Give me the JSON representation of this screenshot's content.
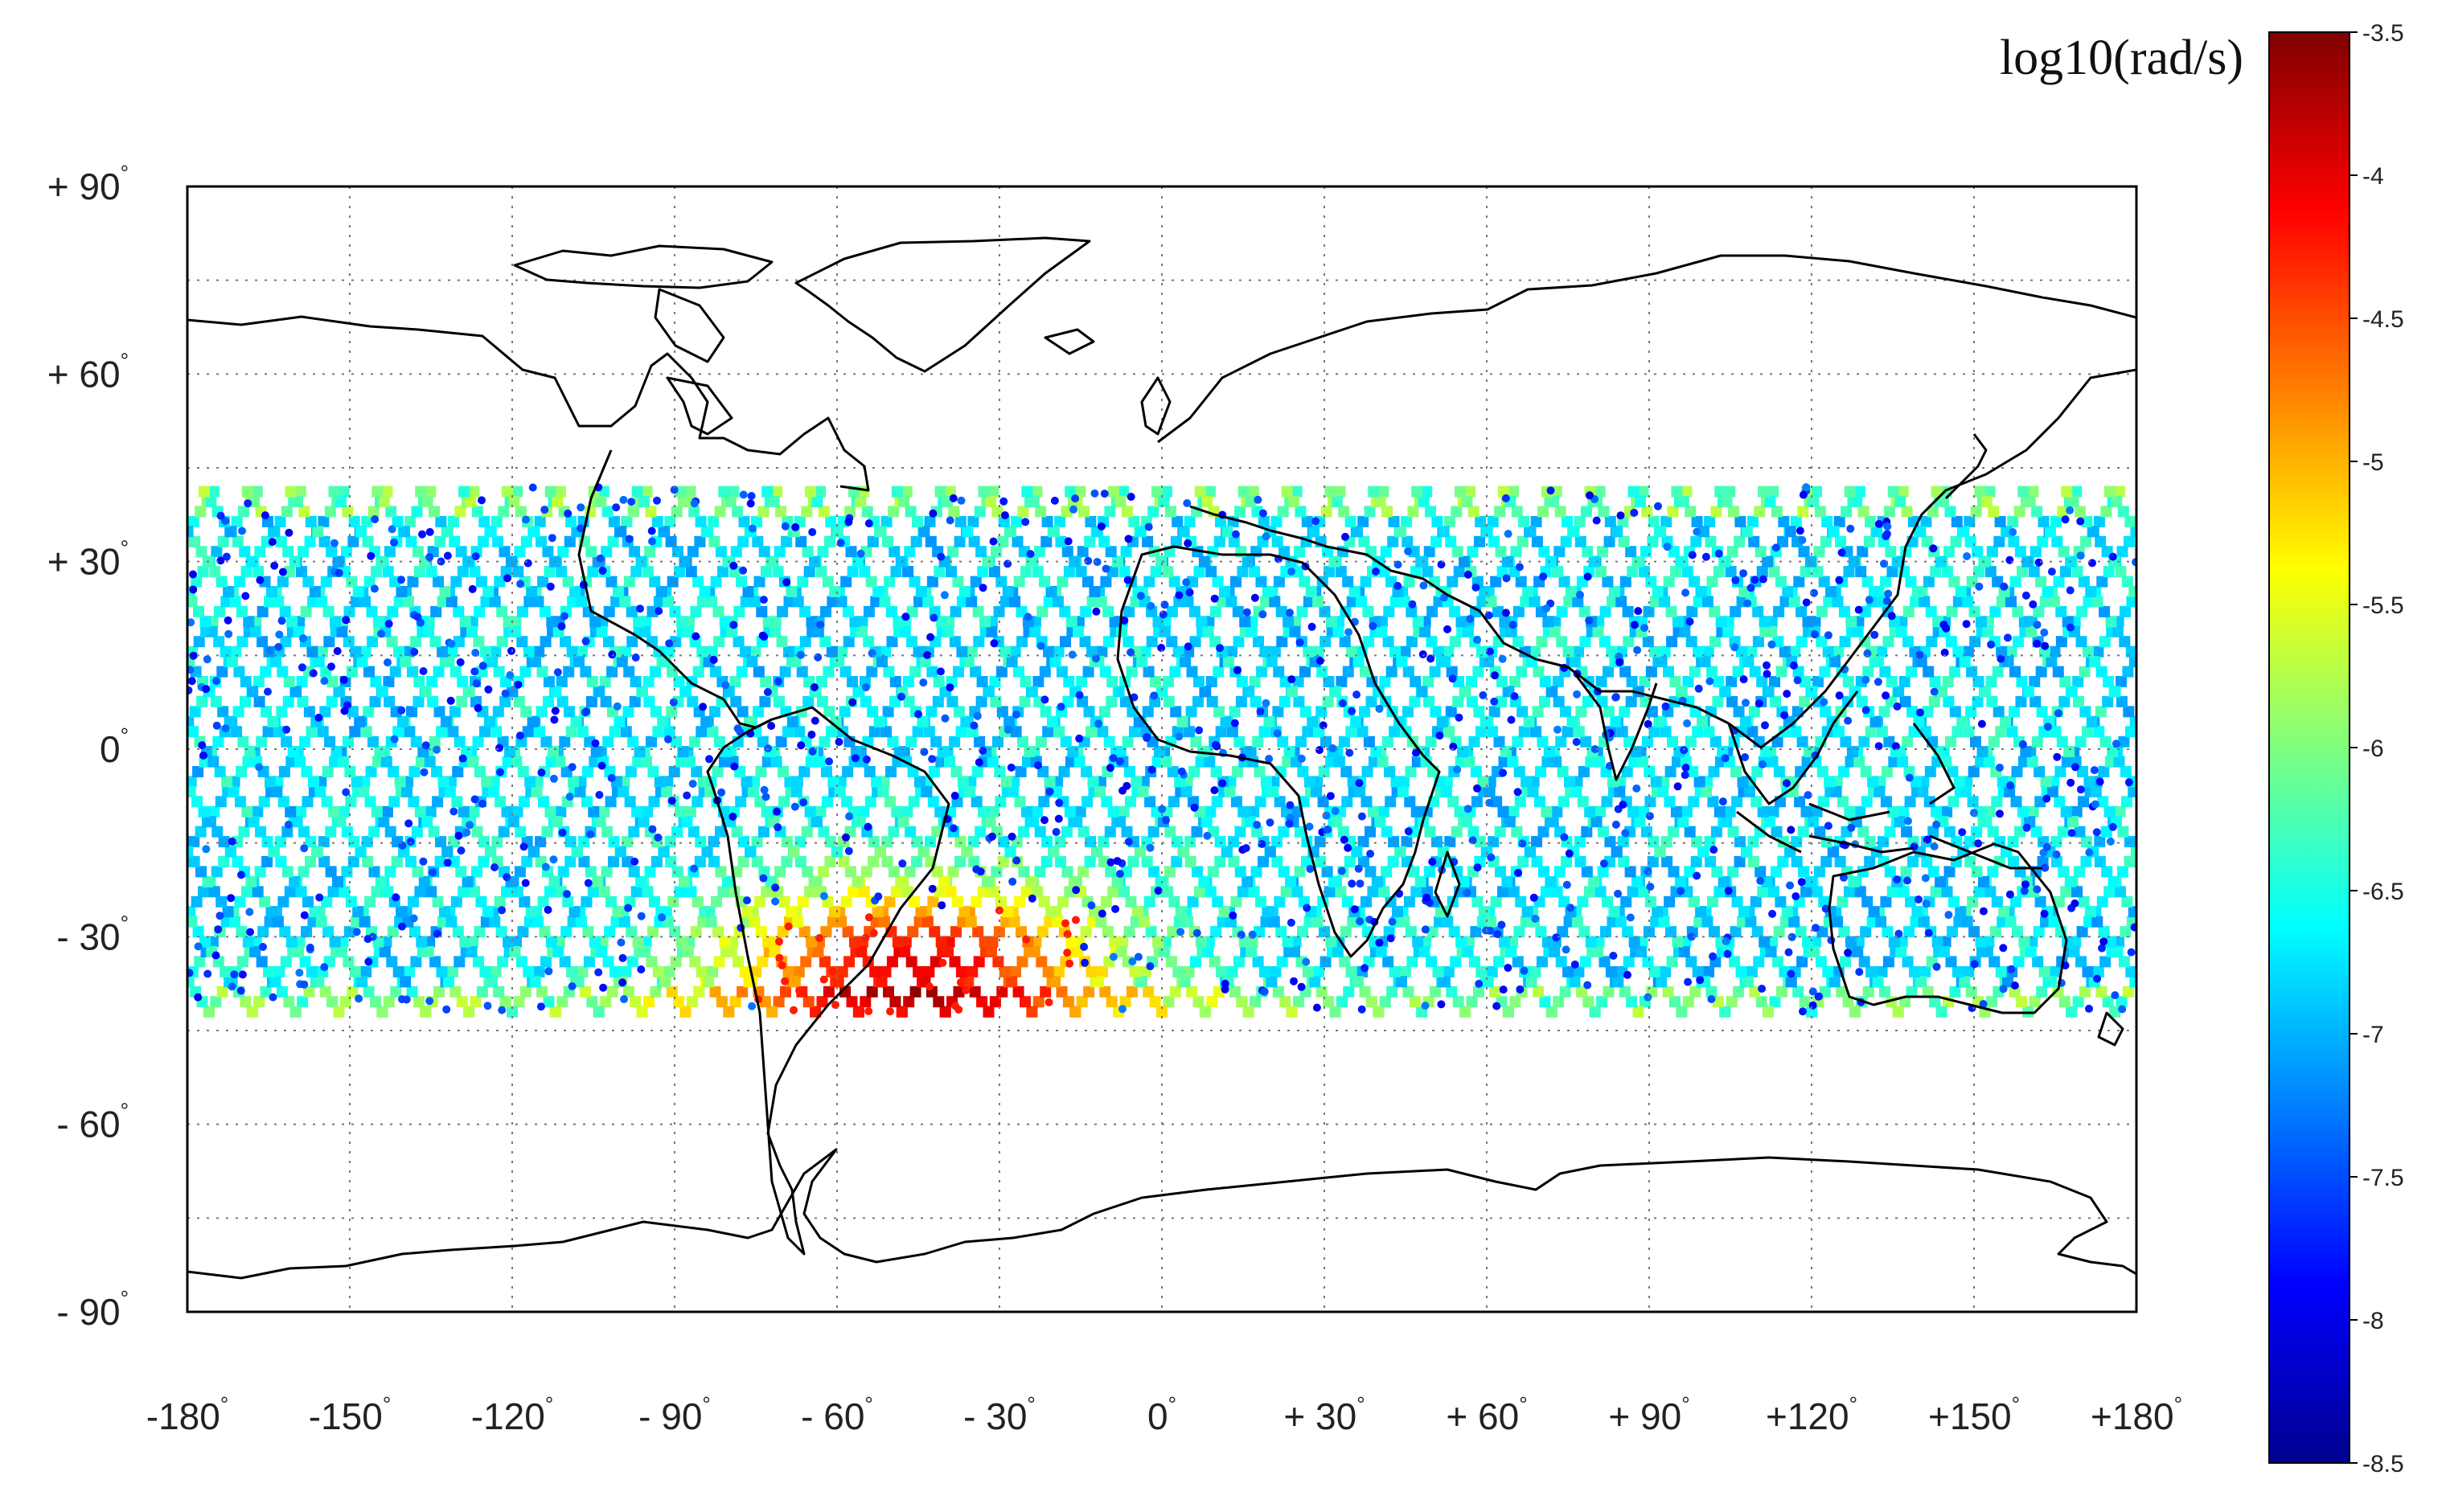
{
  "figure": {
    "colorbar_title": "log10(rad/s)",
    "x_ticks": [
      {
        "value": -180,
        "label": "-180"
      },
      {
        "value": -150,
        "label": "-150"
      },
      {
        "value": -120,
        "label": "-120"
      },
      {
        "value": -90,
        "label": "- 90"
      },
      {
        "value": -60,
        "label": "- 60"
      },
      {
        "value": -30,
        "label": "- 30"
      },
      {
        "value": 0,
        "label": "0"
      },
      {
        "value": 30,
        "label": "+ 30"
      },
      {
        "value": 60,
        "label": "+ 60"
      },
      {
        "value": 90,
        "label": "+ 90"
      },
      {
        "value": 120,
        "label": "+120"
      },
      {
        "value": 150,
        "label": "+150"
      },
      {
        "value": 180,
        "label": "+180"
      }
    ],
    "y_ticks": [
      {
        "value": 90,
        "label": "+ 90"
      },
      {
        "value": 60,
        "label": "+ 60"
      },
      {
        "value": 30,
        "label": "+ 30"
      },
      {
        "value": 0,
        "label": "0"
      },
      {
        "value": -30,
        "label": "- 30"
      },
      {
        "value": -60,
        "label": "- 60"
      },
      {
        "value": -90,
        "label": "- 90"
      }
    ],
    "degree_symbol": "°",
    "colorbar_ticks": [
      "-3.5",
      "-4",
      "-4.5",
      "-5",
      "-5.5",
      "-6",
      "-6.5",
      "-7",
      "-7.5",
      "-8",
      "-8.5"
    ]
  },
  "chart_data": {
    "type": "heatmap",
    "projection": "equirectangular",
    "xlim": [
      -180,
      180
    ],
    "ylim": [
      -90,
      90
    ],
    "grid": true,
    "grid_style": "dotted",
    "gridlines_lon": [
      -150,
      -120,
      -90,
      -60,
      -30,
      0,
      30,
      60,
      90,
      120,
      150
    ],
    "gridlines_lat": [
      -75,
      -60,
      -45,
      -30,
      -15,
      0,
      15,
      30,
      45,
      60,
      75
    ],
    "coverage_lat": [
      -42,
      42
    ],
    "color_scale": "jet",
    "clim": [
      -8.5,
      -3.5
    ],
    "background_value": -6.7,
    "track_spacing_deg": 8,
    "hotspot": {
      "lon": -45,
      "lat": -35,
      "peak_value": -4.0
    },
    "legend_position": "right"
  }
}
